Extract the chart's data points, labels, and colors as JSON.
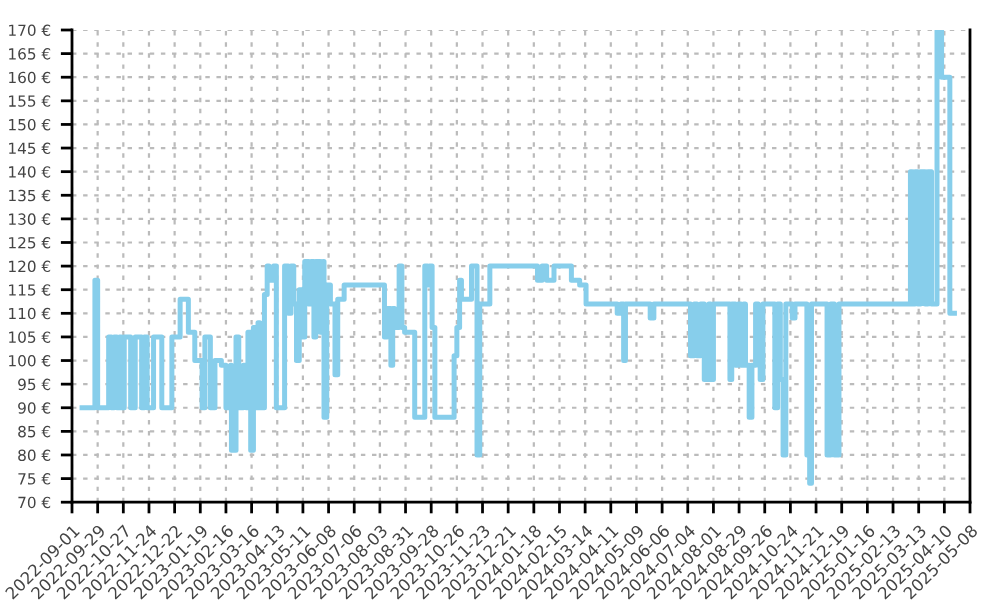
{
  "chart_data": {
    "type": "step",
    "grid": true,
    "line_style": "solid",
    "marker": "none",
    "xlim": [
      "2022-09-01",
      "2025-05-08"
    ],
    "xticks": [
      "2022-09-01",
      "2022-09-29",
      "2022-10-27",
      "2022-11-24",
      "2022-12-22",
      "2023-01-19",
      "2023-02-16",
      "2023-03-16",
      "2023-04-13",
      "2023-05-11",
      "2023-06-08",
      "2023-07-06",
      "2023-08-03",
      "2023-08-31",
      "2023-09-28",
      "2023-10-26",
      "2023-11-23",
      "2023-12-21",
      "2024-01-18",
      "2024-02-15",
      "2024-03-14",
      "2024-04-11",
      "2024-05-09",
      "2024-06-06",
      "2024-07-04",
      "2024-08-01",
      "2024-08-29",
      "2024-09-26",
      "2024-10-24",
      "2024-11-21",
      "2024-12-19",
      "2025-01-16",
      "2025-02-13",
      "2025-03-13",
      "2025-04-10",
      "2025-05-08"
    ],
    "ylim": [
      70,
      170
    ],
    "yticks": [
      {
        "value": 70,
        "label": "70 €"
      },
      {
        "value": 75,
        "label": "75 €"
      },
      {
        "value": 80,
        "label": "80 €"
      },
      {
        "value": 85,
        "label": "85 €"
      },
      {
        "value": 90,
        "label": "90 €"
      },
      {
        "value": 95,
        "label": "95 €"
      },
      {
        "value": 100,
        "label": "100 €"
      },
      {
        "value": 105,
        "label": "105 €"
      },
      {
        "value": 110,
        "label": "110 €"
      },
      {
        "value": 115,
        "label": "115 €"
      },
      {
        "value": 120,
        "label": "120 €"
      },
      {
        "value": 125,
        "label": "125 €"
      },
      {
        "value": 130,
        "label": "130 €"
      },
      {
        "value": 135,
        "label": "135 €"
      },
      {
        "value": 140,
        "label": "140 €"
      },
      {
        "value": 145,
        "label": "145 €"
      },
      {
        "value": 150,
        "label": "150 €"
      },
      {
        "value": 155,
        "label": "155 €"
      },
      {
        "value": 160,
        "label": "160 €"
      },
      {
        "value": 165,
        "label": "165 €"
      },
      {
        "value": 170,
        "label": "170 €"
      }
    ],
    "series": [
      {
        "color": "#87ceeb",
        "x": [
          "2022-09-12",
          "2022-09-26",
          "2022-09-29",
          "2022-10-11",
          "2022-10-14",
          "2022-10-17",
          "2022-10-20",
          "2022-10-23",
          "2022-10-25",
          "2022-10-28",
          "2022-11-04",
          "2022-11-09",
          "2022-11-16",
          "2022-11-19",
          "2022-11-22",
          "2022-11-29",
          "2022-12-08",
          "2022-12-19",
          "2022-12-28",
          "2023-01-06",
          "2023-01-13",
          "2023-01-21",
          "2023-01-24",
          "2023-01-30",
          "2023-02-04",
          "2023-02-11",
          "2023-02-16",
          "2023-02-21",
          "2023-02-22",
          "2023-02-27",
          "2023-03-02",
          "2023-03-07",
          "2023-03-10",
          "2023-03-12",
          "2023-03-15",
          "2023-03-18",
          "2023-03-20",
          "2023-03-23",
          "2023-03-25",
          "2023-03-30",
          "2023-04-02",
          "2023-04-04",
          "2023-04-09",
          "2023-04-12",
          "2023-04-21",
          "2023-04-25",
          "2023-04-28",
          "2023-05-01",
          "2023-05-04",
          "2023-05-07",
          "2023-05-10",
          "2023-05-13",
          "2023-05-17",
          "2023-05-20",
          "2023-05-23",
          "2023-05-25",
          "2023-05-30",
          "2023-06-02",
          "2023-06-03",
          "2023-06-06",
          "2023-06-10",
          "2023-06-15",
          "2023-06-18",
          "2023-06-25",
          "2023-08-08",
          "2023-08-11",
          "2023-08-15",
          "2023-08-17",
          "2023-08-19",
          "2023-08-24",
          "2023-08-27",
          "2023-08-30",
          "2023-09-10",
          "2023-09-21",
          "2023-09-24",
          "2023-09-26",
          "2023-09-29",
          "2023-10-02",
          "2023-10-23",
          "2023-10-26",
          "2023-10-29",
          "2023-10-31",
          "2023-11-11",
          "2023-11-17",
          "2023-11-20",
          "2023-12-01",
          "2024-01-22",
          "2024-01-27",
          "2024-02-01",
          "2024-02-09",
          "2024-02-28",
          "2024-03-08",
          "2024-03-15",
          "2024-04-18",
          "2024-04-22",
          "2024-04-25",
          "2024-04-27",
          "2024-05-24",
          "2024-05-28",
          "2024-07-07",
          "2024-07-11",
          "2024-07-14",
          "2024-07-18",
          "2024-07-22",
          "2024-07-27",
          "2024-07-29",
          "2024-08-01",
          "2024-08-19",
          "2024-08-21",
          "2024-08-25",
          "2024-08-28",
          "2024-08-31",
          "2024-09-03",
          "2024-09-05",
          "2024-09-09",
          "2024-09-12",
          "2024-09-16",
          "2024-09-19",
          "2024-09-21",
          "2024-09-24",
          "2024-10-07",
          "2024-10-10",
          "2024-10-13",
          "2024-10-16",
          "2024-10-19",
          "2024-10-26",
          "2024-10-29",
          "2024-11-11",
          "2024-11-14",
          "2024-11-16",
          "2024-12-03",
          "2024-12-07",
          "2024-12-11",
          "2024-12-16",
          "2025-03-04",
          "2025-03-06",
          "2025-03-09",
          "2025-03-12",
          "2025-03-15",
          "2025-03-20",
          "2025-03-23",
          "2025-03-27",
          "2025-04-02",
          "2025-04-07",
          "2025-04-16",
          "2025-04-21"
        ],
        "values": [
          90,
          117,
          90,
          105,
          90,
          105,
          90,
          105,
          90,
          105,
          90,
          105,
          90,
          105,
          90,
          105,
          90,
          105,
          113,
          106,
          100,
          90,
          105,
          90,
          100,
          99,
          90,
          99,
          81,
          105,
          90,
          99,
          90,
          106,
          81,
          107,
          90,
          108,
          90,
          114,
          120,
          117,
          120,
          90,
          120,
          110,
          120,
          112,
          100,
          115,
          105,
          121,
          112,
          121,
          105,
          121,
          106,
          121,
          88,
          116,
          112,
          97,
          113,
          116,
          105,
          111,
          99,
          111,
          107,
          120,
          107,
          106,
          88,
          120,
          116,
          120,
          107,
          88,
          101,
          107,
          117,
          113,
          120,
          80,
          112,
          120,
          117,
          120,
          117,
          120,
          117,
          116,
          112,
          110,
          112,
          100,
          112,
          109,
          112,
          101,
          112,
          101,
          112,
          96,
          112,
          96,
          112,
          96,
          112,
          99,
          112,
          99,
          112,
          99,
          88,
          99,
          112,
          99,
          96,
          112,
          90,
          112,
          96,
          80,
          112,
          109,
          112,
          80,
          74,
          112,
          80,
          112,
          80,
          112,
          140,
          112,
          140,
          112,
          140,
          112,
          140,
          112,
          170,
          160,
          110,
          110
        ]
      }
    ]
  }
}
